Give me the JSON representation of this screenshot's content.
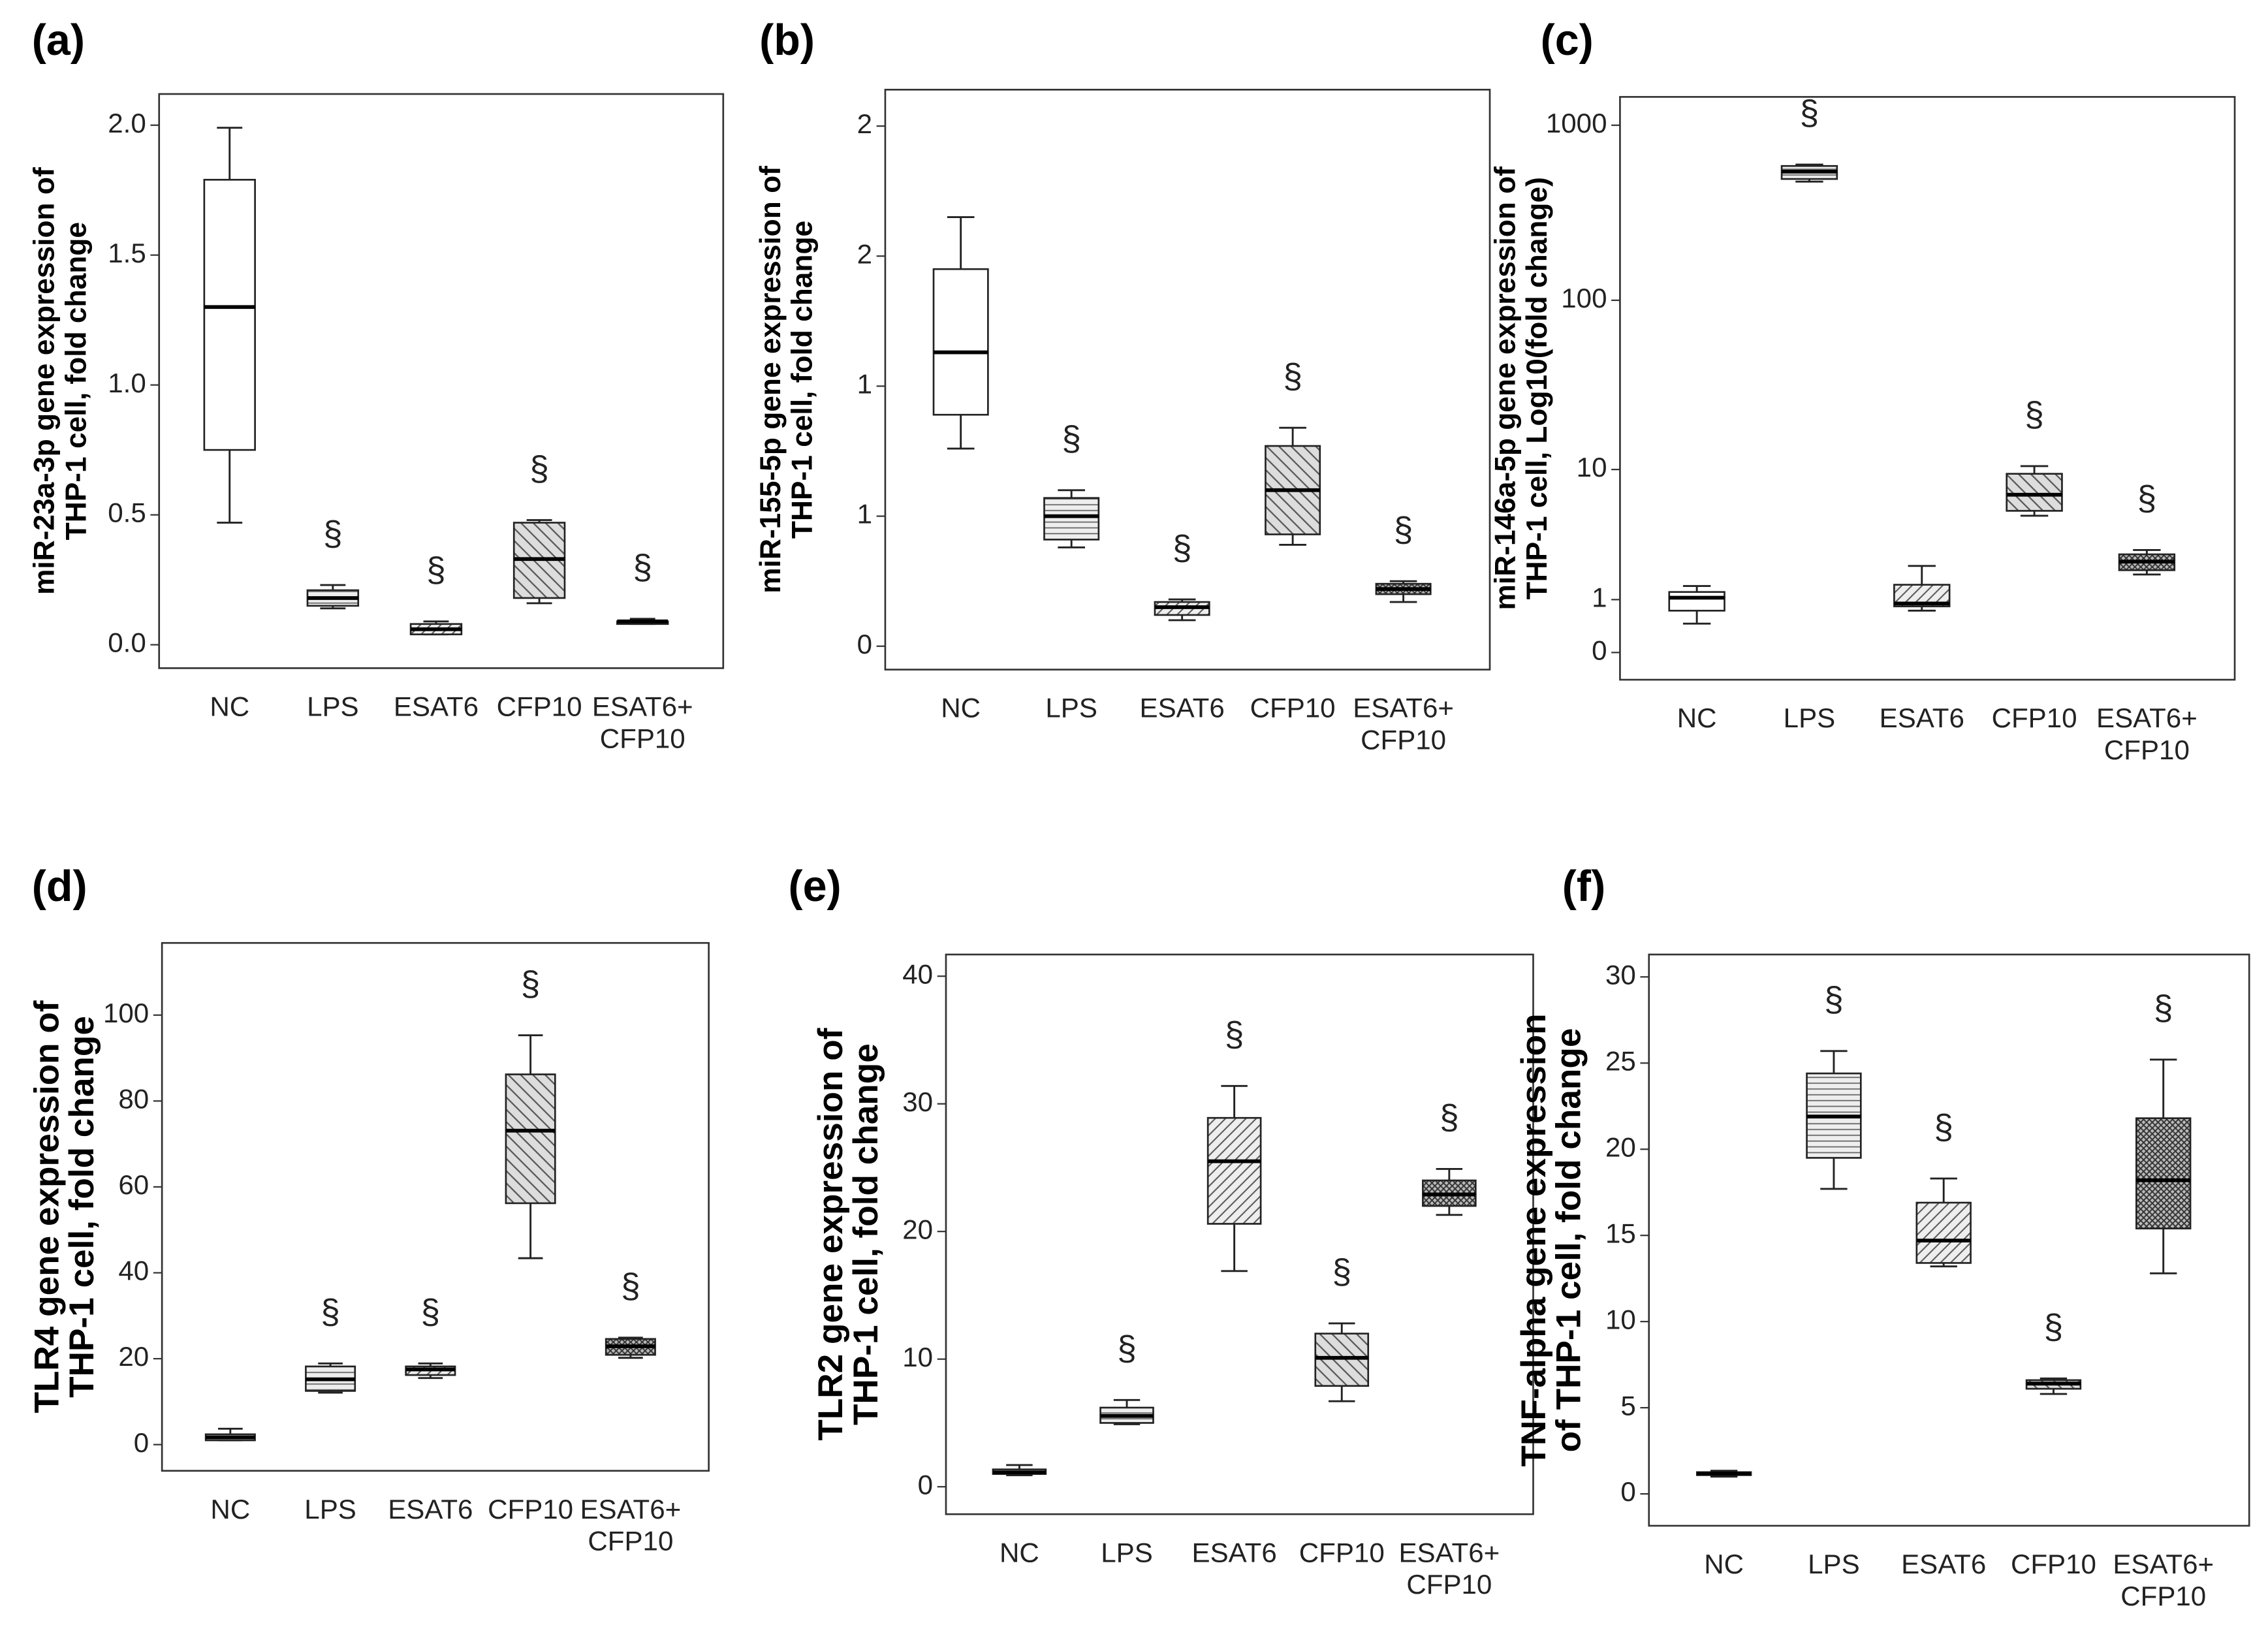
{
  "chart_data": [
    {
      "type": "box",
      "label": "(a)",
      "ylabel": [
        "miR-23a-3p gene expression of",
        "THP-1 cell, fold change"
      ],
      "categories": [
        "NC",
        "LPS",
        "ESAT6",
        "CFP10",
        [
          "ESAT6+",
          "CFP10"
        ]
      ],
      "boxes": [
        {
          "low": 0.47,
          "q1": 0.75,
          "median": 1.3,
          "q3": 1.79,
          "high": 1.99
        },
        {
          "low": 0.14,
          "q1": 0.15,
          "median": 0.18,
          "q3": 0.21,
          "high": 0.23
        },
        {
          "low": 0.04,
          "q1": 0.04,
          "median": 0.06,
          "q3": 0.08,
          "high": 0.09
        },
        {
          "low": 0.16,
          "q1": 0.18,
          "median": 0.33,
          "q3": 0.47,
          "high": 0.48
        },
        {
          "low": 0.08,
          "q1": 0.08,
          "median": 0.09,
          "q3": 0.09,
          "high": 0.1
        }
      ],
      "annotations": [
        null,
        "§",
        "§",
        "§",
        "§"
      ],
      "ylim": [
        -0.09,
        2.12
      ],
      "yticks": [
        {
          "value": 0,
          "label": "0.0"
        },
        0.5,
        {
          "value": 1,
          "label": "1.0"
        },
        1.5,
        {
          "value": 2,
          "label": "2.0"
        }
      ]
    },
    {
      "type": "box",
      "label": "(b)",
      "ylabel": [
        "miR-155-5p gene expression of",
        "THP-1 cell, fold change"
      ],
      "categories": [
        "NC",
        "LPS",
        "ESAT6",
        "CFP10",
        [
          "ESAT6+",
          "CFP10"
        ]
      ],
      "boxes": [
        {
          "low": 0.76,
          "q1": 0.89,
          "median": 1.13,
          "q3": 1.45,
          "high": 1.65
        },
        {
          "low": 0.38,
          "q1": 0.41,
          "median": 0.5,
          "q3": 0.57,
          "high": 0.6
        },
        {
          "low": 0.1,
          "q1": 0.12,
          "median": 0.15,
          "q3": 0.17,
          "high": 0.18
        },
        {
          "low": 0.39,
          "q1": 0.43,
          "median": 0.6,
          "q3": 0.77,
          "high": 0.84
        },
        {
          "low": 0.17,
          "q1": 0.2,
          "median": 0.22,
          "q3": 0.24,
          "high": 0.25
        }
      ],
      "annotations": [
        null,
        "§",
        "§",
        "§",
        "§"
      ],
      "ylim": [
        -0.09,
        2.14
      ],
      "yticks": [
        0,
        {
          "value": 0.5,
          "label": "1"
        },
        1,
        {
          "value": 1.5,
          "label": "2"
        },
        2
      ]
    },
    {
      "type": "box",
      "label": "(c)",
      "ylabel": [
        "miR-146a-5p gene expression of",
        "THP-1 cell, Log10(fold change)"
      ],
      "categories": [
        "NC",
        "LPS",
        "ESAT6",
        "CFP10",
        [
          "ESAT6+",
          "CFP10"
        ]
      ],
      "boxes": [
        {
          "low": 0.46,
          "q1": 0.73,
          "median": 1.05,
          "q3": 1.21,
          "high": 1.39
        },
        {
          "low": 477,
          "q1": 494,
          "median": 544,
          "q3": 586,
          "high": 597
        },
        {
          "low": 0.73,
          "q1": 0.83,
          "median": 0.9,
          "q3": 1.43,
          "high": 2.11
        },
        {
          "low": 5.0,
          "q1": 5.4,
          "median": 6.9,
          "q3": 9.4,
          "high": 10.5
        },
        {
          "low": 1.78,
          "q1": 1.94,
          "median": 2.29,
          "q3": 2.62,
          "high": 2.83
        }
      ],
      "annotations": [
        null,
        "§",
        null,
        "§",
        "§"
      ],
      "yscale": "log10(x+1)",
      "ylim": [
        -0.3,
        1450
      ],
      "yticks": [
        0,
        1,
        10,
        100,
        1000
      ]
    },
    {
      "type": "box",
      "label": "(d)",
      "ylabel": [
        "TLR4 gene expression of",
        "THP-1 cell, fold change"
      ],
      "categories": [
        "NC",
        "LPS",
        "ESAT6",
        "CFP10",
        [
          "ESAT6+",
          "CFP10"
        ]
      ],
      "boxes": [
        {
          "low": 1.0,
          "q1": 1.0,
          "median": 1.7,
          "q3": 2.4,
          "high": 3.7
        },
        {
          "low": 12.1,
          "q1": 12.5,
          "median": 15.2,
          "q3": 18.2,
          "high": 18.9
        },
        {
          "low": 15.5,
          "q1": 16.2,
          "median": 17.5,
          "q3": 18.2,
          "high": 18.9
        },
        {
          "low": 43.4,
          "q1": 56.2,
          "median": 73.1,
          "q3": 86.2,
          "high": 95.3
        },
        {
          "low": 20.2,
          "q1": 20.9,
          "median": 22.9,
          "q3": 24.6,
          "high": 24.9
        }
      ],
      "annotations": [
        null,
        "§",
        "§",
        "§",
        "§"
      ],
      "ylim": [
        -6.1,
        116.8
      ],
      "yticks": [
        0,
        20,
        40,
        60,
        80,
        100
      ]
    },
    {
      "type": "box",
      "label": "(e)",
      "ylabel": [
        "TLR2 gene expression of",
        "THP-1 cell, fold change"
      ],
      "categories": [
        "NC",
        "LPS",
        "ESAT6",
        "CFP10",
        [
          "ESAT6+",
          "CFP10"
        ]
      ],
      "boxes": [
        {
          "low": 0.9,
          "q1": 1.0,
          "median": 1.13,
          "q3": 1.36,
          "high": 1.7
        },
        {
          "low": 4.9,
          "q1": 5.0,
          "median": 5.55,
          "q3": 6.2,
          "high": 6.8
        },
        {
          "low": 16.9,
          "q1": 20.6,
          "median": 25.5,
          "q3": 28.9,
          "high": 31.4
        },
        {
          "low": 6.7,
          "q1": 7.9,
          "median": 10.1,
          "q3": 12.0,
          "high": 12.8
        },
        {
          "low": 21.3,
          "q1": 22.0,
          "median": 22.9,
          "q3": 24.0,
          "high": 24.9
        }
      ],
      "annotations": [
        null,
        "§",
        "§",
        "§",
        "§"
      ],
      "ylim": [
        -2.15,
        41.7
      ],
      "yticks": [
        0,
        10,
        20,
        30,
        40
      ]
    },
    {
      "type": "box",
      "label": "(f)",
      "ylabel": [
        "TNF-alpha gene expression",
        "of THP-1 cell, fold change"
      ],
      "categories": [
        "NC",
        "LPS",
        "ESAT6",
        "CFP10",
        [
          "ESAT6+",
          "CFP10"
        ]
      ],
      "boxes": [
        {
          "low": 1.0,
          "q1": 1.09,
          "median": 1.18,
          "q3": 1.26,
          "high": 1.34
        },
        {
          "low": 17.7,
          "q1": 19.5,
          "median": 21.9,
          "q3": 24.4,
          "high": 25.7
        },
        {
          "low": 13.2,
          "q1": 13.4,
          "median": 14.7,
          "q3": 16.9,
          "high": 18.3
        },
        {
          "low": 5.8,
          "q1": 6.1,
          "median": 6.4,
          "q3": 6.6,
          "high": 6.7
        },
        {
          "low": 12.8,
          "q1": 15.4,
          "median": 18.2,
          "q3": 21.8,
          "high": 25.2
        }
      ],
      "annotations": [
        null,
        "§",
        "§",
        "§",
        "§"
      ],
      "ylim": [
        -1.85,
        31.3
      ],
      "yticks": [
        0,
        5,
        10,
        15,
        20,
        25,
        30
      ]
    }
  ]
}
